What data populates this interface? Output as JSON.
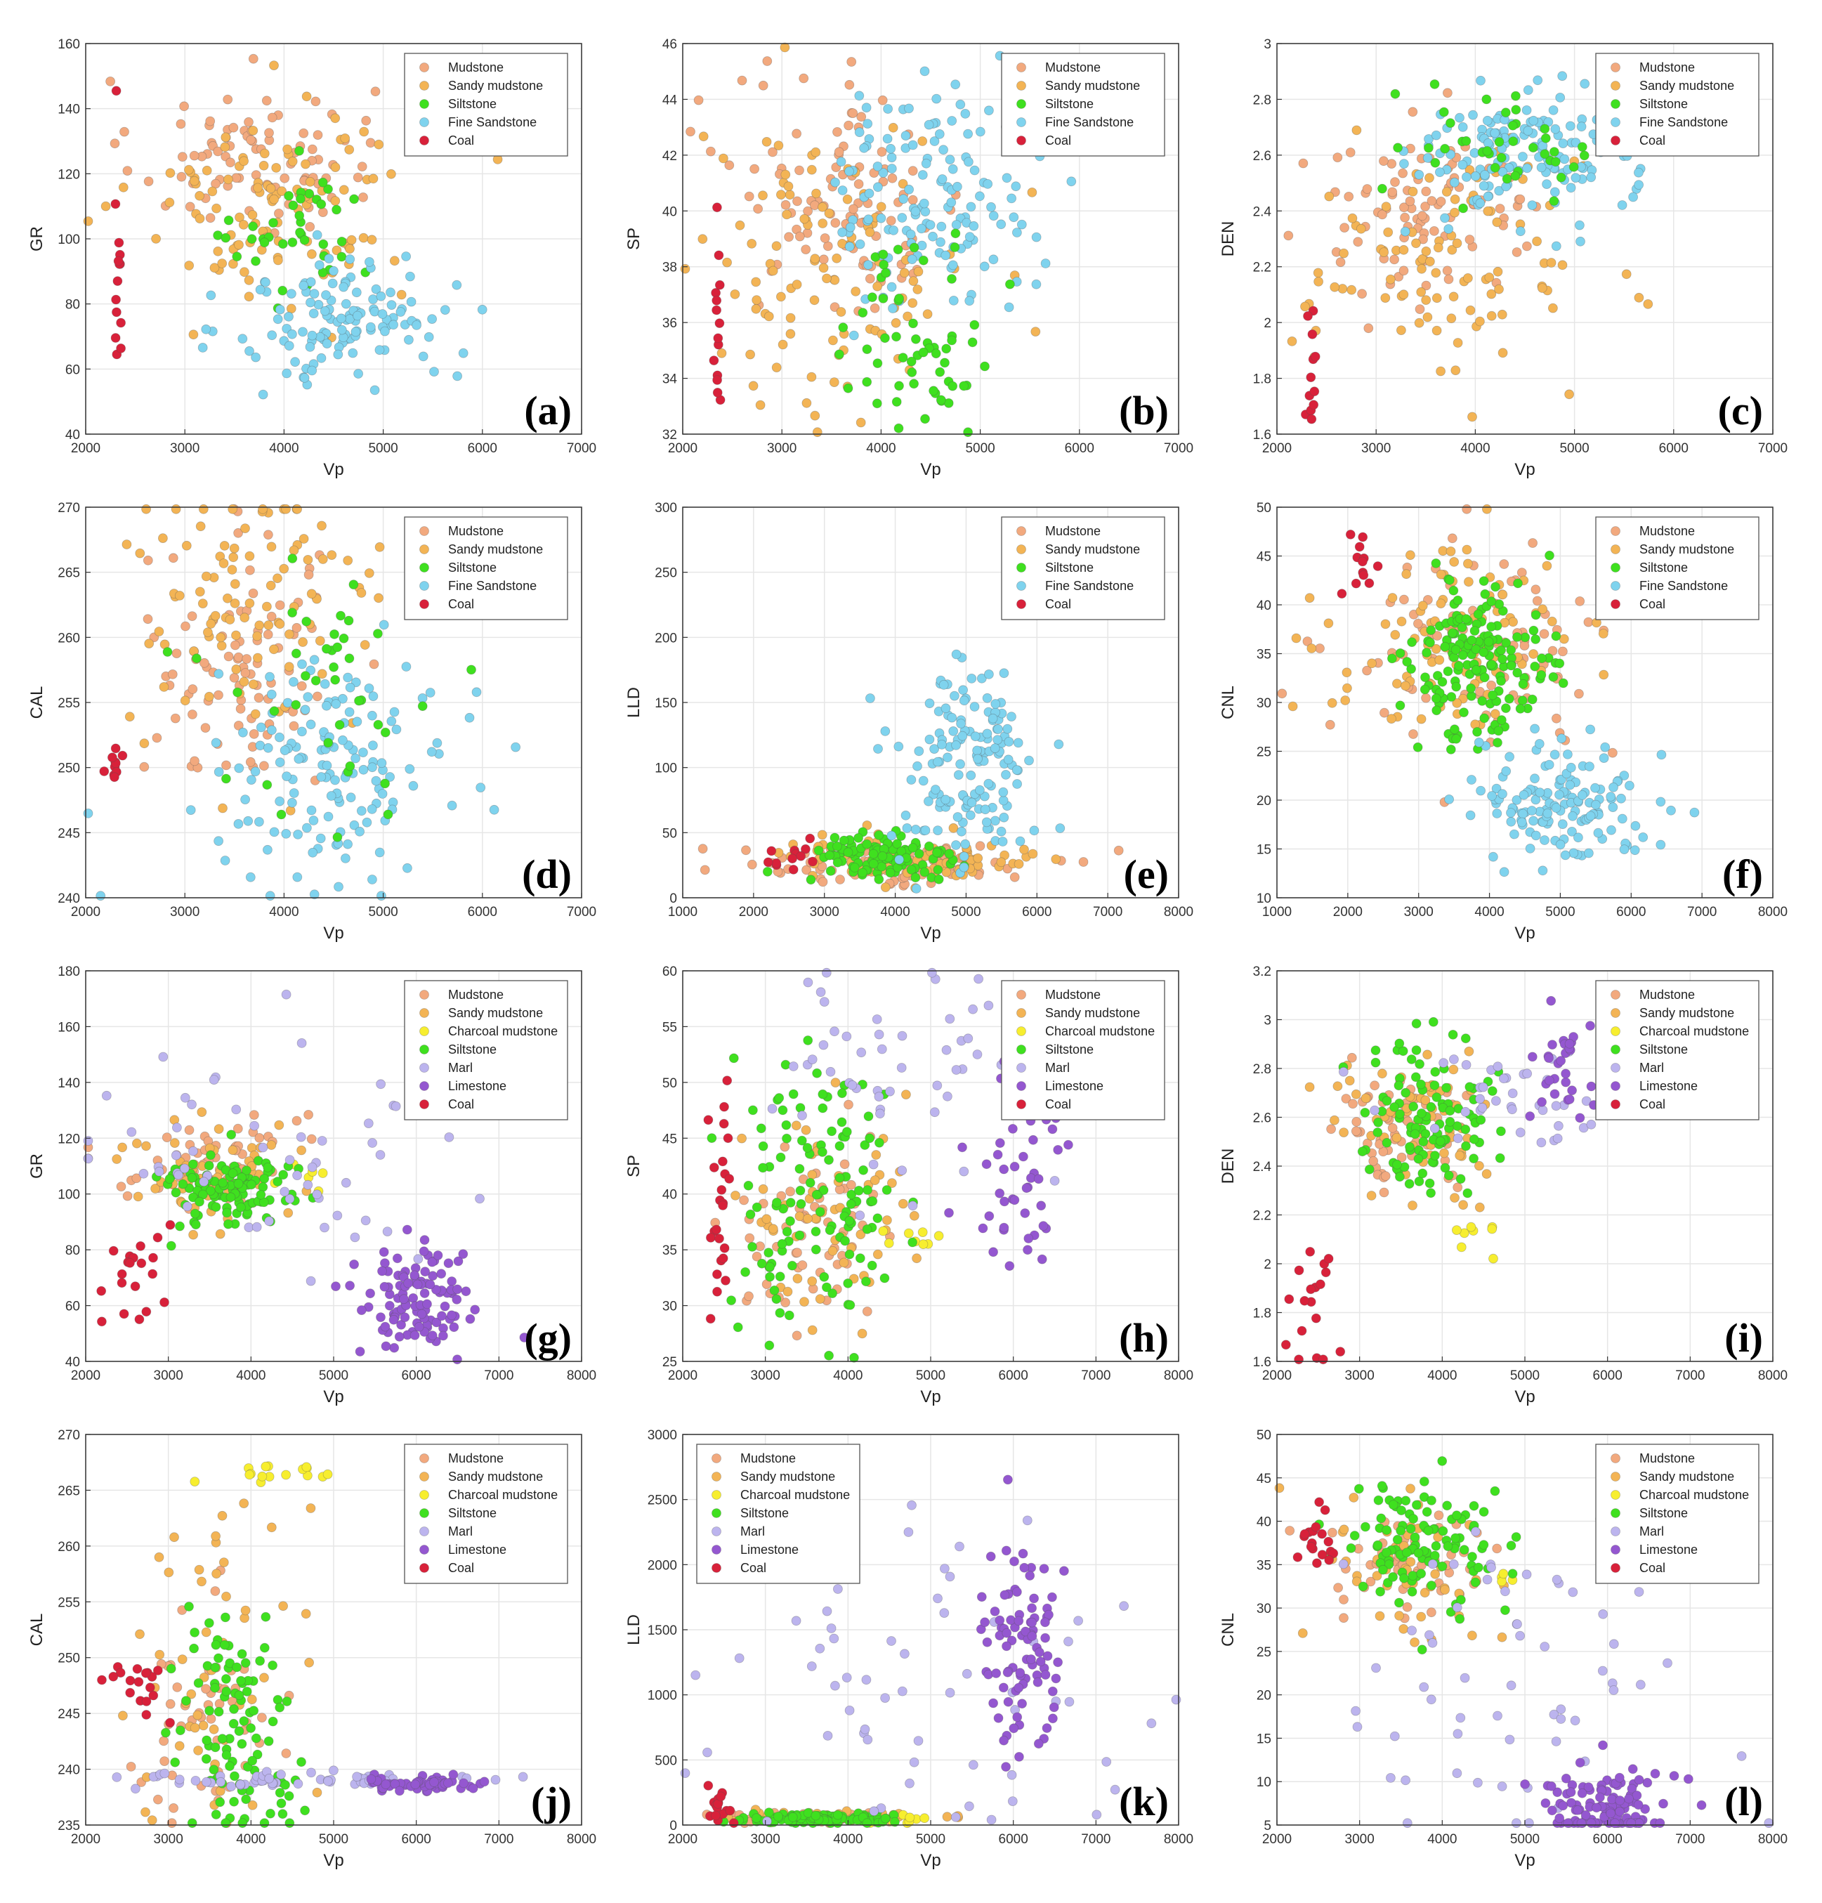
{
  "chart_data": [
    {
      "panel": "(a)",
      "type": "scatter",
      "xlabel": "Vp",
      "ylabel": "GR",
      "xlim": [
        2000,
        7000
      ],
      "ylim": [
        40,
        160
      ],
      "xticks": [
        2000,
        3000,
        4000,
        5000,
        6000,
        7000
      ],
      "yticks": [
        40,
        60,
        80,
        100,
        120,
        140,
        160
      ],
      "legend": [
        "Mudstone",
        "Sandy mudstone",
        "Siltstone",
        "Fine Sandstone",
        "Coal"
      ],
      "legend_position": "top-right",
      "clusters": [
        {
          "class": "Mudstone",
          "cx": 3700,
          "cy": 125,
          "sx": 600,
          "sy": 12,
          "n": 90
        },
        {
          "class": "Sandy mudstone",
          "cx": 3900,
          "cy": 112,
          "sx": 700,
          "sy": 16,
          "n": 110
        },
        {
          "class": "Siltstone",
          "cx": 4200,
          "cy": 100,
          "sx": 350,
          "sy": 10,
          "n": 40
        },
        {
          "class": "Fine Sandstone",
          "cx": 4600,
          "cy": 75,
          "sx": 550,
          "sy": 10,
          "n": 130
        },
        {
          "class": "Coal",
          "cx": 2330,
          "cy": 95,
          "sx": 20,
          "sy": 18,
          "n": 14
        }
      ]
    },
    {
      "panel": "(b)",
      "type": "scatter",
      "xlabel": "Vp",
      "ylabel": "SP",
      "xlim": [
        2000,
        7000
      ],
      "ylim": [
        32,
        46
      ],
      "xticks": [
        2000,
        3000,
        4000,
        5000,
        6000,
        7000
      ],
      "yticks": [
        32,
        34,
        36,
        38,
        40,
        42,
        44,
        46
      ],
      "legend": [
        "Mudstone",
        "Sandy mudstone",
        "Siltstone",
        "Fine Sandstone",
        "Coal"
      ],
      "legend_position": "top-right",
      "clusters": [
        {
          "class": "Mudstone",
          "cx": 3700,
          "cy": 40.5,
          "sx": 600,
          "sy": 2.2,
          "n": 100
        },
        {
          "class": "Sandy mudstone",
          "cx": 3500,
          "cy": 38,
          "sx": 700,
          "sy": 2.6,
          "n": 110
        },
        {
          "class": "Fine Sandstone",
          "cx": 4500,
          "cy": 40.5,
          "sx": 500,
          "sy": 2.0,
          "n": 140
        },
        {
          "class": "Siltstone",
          "cx": 4400,
          "cy": 35.5,
          "sx": 400,
          "sy": 1.8,
          "n": 60
        },
        {
          "class": "Coal",
          "cx": 2350,
          "cy": 36,
          "sx": 25,
          "sy": 1.6,
          "n": 14
        }
      ]
    },
    {
      "panel": "(c)",
      "type": "scatter",
      "xlabel": "Vp",
      "ylabel": "DEN",
      "xlim": [
        2000,
        7000
      ],
      "ylim": [
        1.6,
        3.0
      ],
      "xticks": [
        2000,
        3000,
        4000,
        5000,
        6000,
        7000
      ],
      "yticks": [
        1.6,
        1.8,
        2.0,
        2.2,
        2.4,
        2.6,
        2.8,
        3.0
      ],
      "legend": [
        "Mudstone",
        "Sandy mudstone",
        "Siltstone",
        "Fine Sandstone",
        "Coal"
      ],
      "legend_position": "top-right",
      "clusters": [
        {
          "class": "Mudstone",
          "cx": 3500,
          "cy": 2.4,
          "sx": 600,
          "sy": 0.15,
          "n": 90
        },
        {
          "class": "Sandy mudstone",
          "cx": 3700,
          "cy": 2.2,
          "sx": 700,
          "sy": 0.2,
          "n": 100
        },
        {
          "class": "Fine Sandstone",
          "cx": 4500,
          "cy": 2.6,
          "sx": 550,
          "sy": 0.12,
          "n": 150
        },
        {
          "class": "Siltstone",
          "cx": 4300,
          "cy": 2.65,
          "sx": 500,
          "sy": 0.1,
          "n": 40
        },
        {
          "class": "Coal",
          "cx": 2340,
          "cy": 1.8,
          "sx": 25,
          "sy": 0.1,
          "n": 12
        }
      ]
    },
    {
      "panel": "(d)",
      "type": "scatter",
      "xlabel": "Vp",
      "ylabel": "CAL",
      "xlim": [
        2000,
        7000
      ],
      "ylim": [
        240,
        270
      ],
      "xticks": [
        2000,
        3000,
        4000,
        5000,
        6000,
        7000
      ],
      "yticks": [
        240,
        245,
        250,
        255,
        260,
        265,
        270
      ],
      "legend": [
        "Mudstone",
        "Sandy mudstone",
        "Siltstone",
        "Fine Sandstone",
        "Coal"
      ],
      "legend_position": "top-right",
      "clusters": [
        {
          "class": "Mudstone",
          "cx": 3600,
          "cy": 258,
          "sx": 500,
          "sy": 5,
          "n": 90
        },
        {
          "class": "Sandy mudstone",
          "cx": 3700,
          "cy": 262,
          "sx": 650,
          "sy": 5,
          "n": 100
        },
        {
          "class": "Fine Sandstone",
          "cx": 4500,
          "cy": 250,
          "sx": 600,
          "sy": 4,
          "n": 150
        },
        {
          "class": "Siltstone",
          "cx": 4400,
          "cy": 255,
          "sx": 600,
          "sy": 6,
          "n": 40
        },
        {
          "class": "Coal",
          "cx": 2300,
          "cy": 250.5,
          "sx": 50,
          "sy": 0.6,
          "n": 10
        }
      ]
    },
    {
      "panel": "(e)",
      "type": "scatter",
      "xlabel": "Vp",
      "ylabel": "LLD",
      "xlim": [
        1000,
        8000
      ],
      "ylim": [
        0,
        300
      ],
      "xticks": [
        1000,
        2000,
        3000,
        4000,
        5000,
        6000,
        7000,
        8000
      ],
      "yticks": [
        0,
        50,
        100,
        150,
        200,
        250,
        300
      ],
      "legend": [
        "Mudstone",
        "Sandy mudstone",
        "Siltstone",
        "Fine Sandstone",
        "Coal"
      ],
      "legend_position": "top-right",
      "clusters": [
        {
          "class": "Mudstone",
          "cx": 4000,
          "cy": 25,
          "sx": 1000,
          "sy": 8,
          "n": 90
        },
        {
          "class": "Sandy mudstone",
          "cx": 4200,
          "cy": 30,
          "sx": 1000,
          "sy": 10,
          "n": 90
        },
        {
          "class": "Siltstone",
          "cx": 3800,
          "cy": 30,
          "sx": 500,
          "sy": 10,
          "n": 110
        },
        {
          "class": "Fine Sandstone",
          "cx": 5000,
          "cy": 100,
          "sx": 500,
          "sy": 40,
          "n": 150
        },
        {
          "class": "Coal",
          "cx": 2500,
          "cy": 30,
          "sx": 300,
          "sy": 6,
          "n": 12
        }
      ]
    },
    {
      "panel": "(f)",
      "type": "scatter",
      "xlabel": "Vp",
      "ylabel": "CNL",
      "xlim": [
        1000,
        8000
      ],
      "ylim": [
        10,
        50
      ],
      "xticks": [
        1000,
        2000,
        3000,
        4000,
        5000,
        6000,
        7000,
        8000
      ],
      "yticks": [
        10,
        15,
        20,
        25,
        30,
        35,
        40,
        45,
        50
      ],
      "legend": [
        "Mudstone",
        "Sandy mudstone",
        "Siltstone",
        "Fine Sandstone",
        "Coal"
      ],
      "legend_position": "top-right",
      "clusters": [
        {
          "class": "Mudstone",
          "cx": 3800,
          "cy": 36,
          "sx": 900,
          "sy": 5,
          "n": 90
        },
        {
          "class": "Sandy mudstone",
          "cx": 3500,
          "cy": 36,
          "sx": 900,
          "sy": 5,
          "n": 100
        },
        {
          "class": "Siltstone",
          "cx": 3900,
          "cy": 34,
          "sx": 500,
          "sy": 4,
          "n": 160
        },
        {
          "class": "Fine Sandstone",
          "cx": 5000,
          "cy": 20,
          "sx": 600,
          "sy": 3,
          "n": 140
        },
        {
          "class": "Coal",
          "cx": 2200,
          "cy": 44,
          "sx": 150,
          "sy": 2,
          "n": 12
        }
      ]
    },
    {
      "panel": "(g)",
      "type": "scatter",
      "xlabel": "Vp",
      "ylabel": "GR",
      "xlim": [
        2000,
        8000
      ],
      "ylim": [
        40,
        180
      ],
      "xticks": [
        2000,
        3000,
        4000,
        5000,
        6000,
        7000,
        8000
      ],
      "yticks": [
        40,
        60,
        80,
        100,
        120,
        140,
        160,
        180
      ],
      "legend": [
        "Mudstone",
        "Sandy mudstone",
        "Charcoal mudstone",
        "Siltstone",
        "Marl",
        "Limestone",
        "Coal"
      ],
      "legend_position": "top-right",
      "clusters": [
        {
          "class": "Mudstone",
          "cx": 3600,
          "cy": 112,
          "sx": 500,
          "sy": 8,
          "n": 60
        },
        {
          "class": "Sandy mudstone",
          "cx": 3400,
          "cy": 108,
          "sx": 500,
          "sy": 10,
          "n": 60
        },
        {
          "class": "Charcoal mudstone",
          "cx": 4600,
          "cy": 105,
          "sx": 150,
          "sy": 4,
          "n": 6
        },
        {
          "class": "Siltstone",
          "cx": 3700,
          "cy": 102,
          "sx": 400,
          "sy": 7,
          "n": 110
        },
        {
          "class": "Marl",
          "cx": 4500,
          "cy": 120,
          "sx": 1200,
          "sy": 20,
          "n": 60
        },
        {
          "class": "Limestone",
          "cx": 6000,
          "cy": 62,
          "sx": 350,
          "sy": 10,
          "n": 110
        },
        {
          "class": "Coal",
          "cx": 2600,
          "cy": 72,
          "sx": 200,
          "sy": 12,
          "n": 20
        }
      ]
    },
    {
      "panel": "(h)",
      "type": "scatter",
      "xlabel": "Vp",
      "ylabel": "SP",
      "xlim": [
        2000,
        8000
      ],
      "ylim": [
        25,
        60
      ],
      "xticks": [
        2000,
        3000,
        4000,
        5000,
        6000,
        7000,
        8000
      ],
      "yticks": [
        25,
        30,
        35,
        40,
        45,
        50,
        55,
        60
      ],
      "legend": [
        "Mudstone",
        "Sandy mudstone",
        "Charcoal mudstone",
        "Siltstone",
        "Marl",
        "Limestone",
        "Coal"
      ],
      "legend_position": "top-right",
      "clusters": [
        {
          "class": "Mudstone",
          "cx": 3500,
          "cy": 36,
          "sx": 400,
          "sy": 4,
          "n": 60
        },
        {
          "class": "Sandy mudstone",
          "cx": 3700,
          "cy": 38,
          "sx": 500,
          "sy": 5,
          "n": 60
        },
        {
          "class": "Charcoal mudstone",
          "cx": 4700,
          "cy": 36,
          "sx": 200,
          "sy": 1,
          "n": 8
        },
        {
          "class": "Siltstone",
          "cx": 3600,
          "cy": 40,
          "sx": 500,
          "sy": 6,
          "n": 120
        },
        {
          "class": "Marl",
          "cx": 4800,
          "cy": 52,
          "sx": 800,
          "sy": 5,
          "n": 50
        },
        {
          "class": "Limestone",
          "cx": 6100,
          "cy": 43,
          "sx": 300,
          "sy": 5,
          "n": 50
        },
        {
          "class": "Coal",
          "cx": 2450,
          "cy": 37,
          "sx": 80,
          "sy": 5,
          "n": 24
        }
      ]
    },
    {
      "panel": "(i)",
      "type": "scatter",
      "xlabel": "Vp",
      "ylabel": "DEN",
      "xlim": [
        2000,
        8000
      ],
      "ylim": [
        1.6,
        3.2
      ],
      "xticks": [
        2000,
        3000,
        4000,
        5000,
        6000,
        7000,
        8000
      ],
      "yticks": [
        1.6,
        1.8,
        2.0,
        2.2,
        2.4,
        2.6,
        2.8,
        3.0,
        3.2
      ],
      "legend": [
        "Mudstone",
        "Sandy mudstone",
        "Charcoal mudstone",
        "Siltstone",
        "Marl",
        "Limestone",
        "Coal"
      ],
      "legend_position": "top-right",
      "clusters": [
        {
          "class": "Mudstone",
          "cx": 3500,
          "cy": 2.55,
          "sx": 450,
          "sy": 0.12,
          "n": 60
        },
        {
          "class": "Sandy mudstone",
          "cx": 3800,
          "cy": 2.6,
          "sx": 500,
          "sy": 0.15,
          "n": 60
        },
        {
          "class": "Charcoal mudstone",
          "cx": 4600,
          "cy": 2.1,
          "sx": 250,
          "sy": 0.08,
          "n": 8
        },
        {
          "class": "Siltstone",
          "cx": 3800,
          "cy": 2.6,
          "sx": 400,
          "sy": 0.15,
          "n": 110
        },
        {
          "class": "Marl",
          "cx": 4800,
          "cy": 2.7,
          "sx": 700,
          "sy": 0.1,
          "n": 40
        },
        {
          "class": "Limestone",
          "cx": 5500,
          "cy": 2.8,
          "sx": 250,
          "sy": 0.1,
          "n": 30
        },
        {
          "class": "Coal",
          "cx": 2450,
          "cy": 1.85,
          "sx": 150,
          "sy": 0.15,
          "n": 18
        }
      ]
    },
    {
      "panel": "(j)",
      "type": "scatter",
      "xlabel": "Vp",
      "ylabel": "CAL",
      "xlim": [
        2000,
        8000
      ],
      "ylim": [
        235,
        270
      ],
      "xticks": [
        2000,
        3000,
        4000,
        5000,
        6000,
        7000,
        8000
      ],
      "yticks": [
        235,
        240,
        245,
        250,
        255,
        260,
        265,
        270
      ],
      "legend": [
        "Mudstone",
        "Sandy mudstone",
        "Charcoal mudstone",
        "Siltstone",
        "Marl",
        "Limestone",
        "Coal"
      ],
      "legend_position": "top-right",
      "clusters": [
        {
          "class": "Mudstone",
          "cx": 3400,
          "cy": 246,
          "sx": 400,
          "sy": 5,
          "n": 50
        },
        {
          "class": "Sandy mudstone",
          "cx": 3600,
          "cy": 250,
          "sx": 500,
          "sy": 8,
          "n": 50
        },
        {
          "class": "Charcoal mudstone",
          "cx": 4400,
          "cy": 266.5,
          "sx": 400,
          "sy": 0.6,
          "n": 16
        },
        {
          "class": "Siltstone",
          "cx": 3900,
          "cy": 244,
          "sx": 400,
          "sy": 5,
          "n": 100
        },
        {
          "class": "Marl",
          "cx": 4500,
          "cy": 239,
          "sx": 1200,
          "sy": 0.3,
          "n": 60
        },
        {
          "class": "Limestone",
          "cx": 6000,
          "cy": 238.7,
          "sx": 400,
          "sy": 0.3,
          "n": 60
        },
        {
          "class": "Coal",
          "cx": 2600,
          "cy": 247.5,
          "sx": 180,
          "sy": 1.6,
          "n": 18
        }
      ]
    },
    {
      "panel": "(k)",
      "type": "scatter",
      "xlabel": "Vp",
      "ylabel": "LLD",
      "xlim": [
        2000,
        8000
      ],
      "ylim": [
        0,
        3000
      ],
      "xticks": [
        2000,
        3000,
        4000,
        5000,
        6000,
        7000,
        8000
      ],
      "yticks": [
        0,
        500,
        1000,
        1500,
        2000,
        2500,
        3000
      ],
      "legend": [
        "Mudstone",
        "Sandy mudstone",
        "Charcoal mudstone",
        "Siltstone",
        "Marl",
        "Limestone",
        "Coal"
      ],
      "legend_position": "top-left",
      "clusters": [
        {
          "class": "Mudstone",
          "cx": 3500,
          "cy": 50,
          "sx": 600,
          "sy": 20,
          "n": 50
        },
        {
          "class": "Sandy mudstone",
          "cx": 3800,
          "cy": 60,
          "sx": 600,
          "sy": 25,
          "n": 50
        },
        {
          "class": "Charcoal mudstone",
          "cx": 4700,
          "cy": 40,
          "sx": 300,
          "sy": 15,
          "n": 10
        },
        {
          "class": "Siltstone",
          "cx": 3600,
          "cy": 50,
          "sx": 500,
          "sy": 20,
          "n": 110
        },
        {
          "class": "Marl",
          "cx": 4800,
          "cy": 900,
          "sx": 1200,
          "sy": 600,
          "n": 60
        },
        {
          "class": "Limestone",
          "cx": 6100,
          "cy": 1400,
          "sx": 250,
          "sy": 400,
          "n": 90
        },
        {
          "class": "Coal",
          "cx": 2450,
          "cy": 150,
          "sx": 80,
          "sy": 100,
          "n": 16
        }
      ]
    },
    {
      "panel": "(l)",
      "type": "scatter",
      "xlabel": "Vp",
      "ylabel": "CNL",
      "xlim": [
        2000,
        8000
      ],
      "ylim": [
        5,
        50
      ],
      "xticks": [
        2000,
        3000,
        4000,
        5000,
        6000,
        7000,
        8000
      ],
      "yticks": [
        5,
        10,
        15,
        20,
        25,
        30,
        35,
        40,
        45,
        50
      ],
      "legend": [
        "Mudstone",
        "Sandy mudstone",
        "Charcoal mudstone",
        "Siltstone",
        "Marl",
        "Limestone",
        "Coal"
      ],
      "legend_position": "top-right",
      "clusters": [
        {
          "class": "Mudstone",
          "cx": 3500,
          "cy": 36,
          "sx": 500,
          "sy": 3,
          "n": 50
        },
        {
          "class": "Sandy mudstone",
          "cx": 3700,
          "cy": 34,
          "sx": 600,
          "sy": 4,
          "n": 50
        },
        {
          "class": "Charcoal mudstone",
          "cx": 4800,
          "cy": 33.5,
          "sx": 100,
          "sy": 0.8,
          "n": 4
        },
        {
          "class": "Siltstone",
          "cx": 3800,
          "cy": 37,
          "sx": 450,
          "sy": 4,
          "n": 110
        },
        {
          "class": "Marl",
          "cx": 4800,
          "cy": 20,
          "sx": 1000,
          "sy": 10,
          "n": 60
        },
        {
          "class": "Limestone",
          "cx": 6000,
          "cy": 7,
          "sx": 400,
          "sy": 2.5,
          "n": 110
        },
        {
          "class": "Coal",
          "cx": 2500,
          "cy": 38,
          "sx": 100,
          "sy": 2.5,
          "n": 18
        }
      ]
    }
  ],
  "colors": {
    "Mudstone": "#f2a97e",
    "Sandy mudstone": "#f3b455",
    "Charcoal mudstone": "#f7ee2f",
    "Siltstone": "#3fe01f",
    "Fine Sandstone": "#7fd3ee",
    "Marl": "#bcb4ee",
    "Limestone": "#9457d0",
    "Coal": "#d8213a",
    "grid": "#e6e6e6",
    "axis": "#333333"
  }
}
